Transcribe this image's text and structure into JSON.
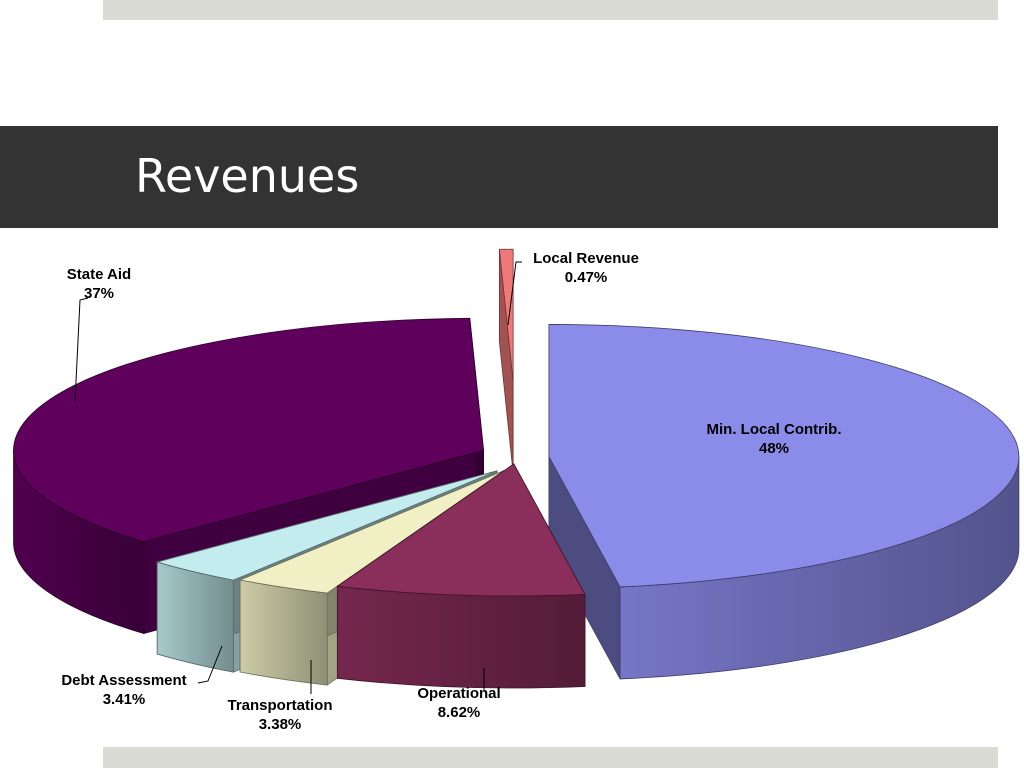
{
  "slide": {
    "title": "Revenues"
  },
  "colors": {
    "title_band": "#333333",
    "stripe": "#d9dbd4",
    "background": "#ffffff"
  },
  "chart_data": {
    "type": "pie",
    "style": "3d-exploded",
    "slices": [
      {
        "label": "Min. Local Contrib.",
        "value": 48,
        "value_label": "48%",
        "color": "#8b8bea"
      },
      {
        "label": "Operational",
        "value": 8.62,
        "value_label": "8.62%",
        "color": "#8a2e5c"
      },
      {
        "label": "Transportation",
        "value": 3.38,
        "value_label": "3.38%",
        "color": "#f0f0c4"
      },
      {
        "label": "Debt Assessment",
        "value": 3.41,
        "value_label": "3.41%",
        "color": "#c2ecee"
      },
      {
        "label": "State Aid",
        "value": 37,
        "value_label": "37%",
        "color": "#5e005c"
      },
      {
        "label": "Local Revenue",
        "value": 0.47,
        "value_label": "0.47%",
        "color": "#f07878"
      }
    ]
  }
}
